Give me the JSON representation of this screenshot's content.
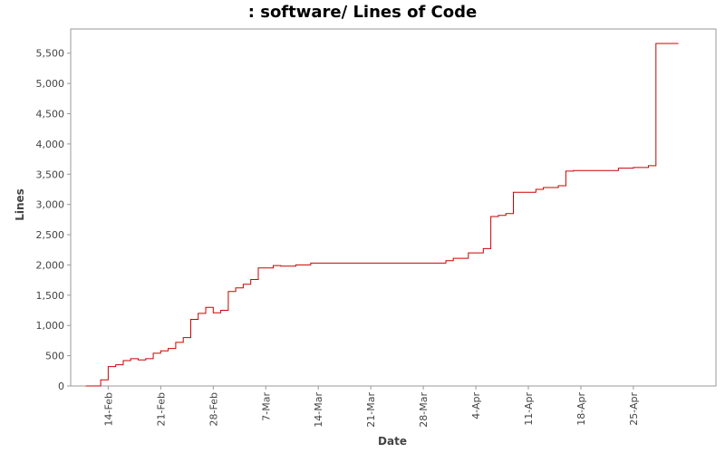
{
  "chart_data": {
    "type": "line",
    "title": ": software/ Lines of Code",
    "xlabel": "Date",
    "ylabel": "Lines",
    "x_tick_labels": [
      "14-Feb",
      "21-Feb",
      "28-Feb",
      "7-Mar",
      "14-Mar",
      "21-Mar",
      "28-Mar",
      "4-Apr",
      "11-Apr",
      "18-Apr",
      "25-Apr"
    ],
    "y_tick_labels": [
      "0",
      "500",
      "1,000",
      "1,500",
      "2,000",
      "2,500",
      "3,000",
      "3,500",
      "4,000",
      "4,500",
      "5,000",
      "5,500"
    ],
    "xlim": [
      "2011-02-09",
      "2011-05-06"
    ],
    "ylim": [
      0,
      5900
    ],
    "grid": false,
    "line_color": "#cc0000",
    "series": [
      {
        "step": true,
        "points": [
          [
            "2011-02-11",
            0
          ],
          [
            "2011-02-13",
            100
          ],
          [
            "2011-02-14",
            320
          ],
          [
            "2011-02-15",
            350
          ],
          [
            "2011-02-16",
            420
          ],
          [
            "2011-02-17",
            450
          ],
          [
            "2011-02-18",
            430
          ],
          [
            "2011-02-19",
            450
          ],
          [
            "2011-02-20",
            540
          ],
          [
            "2011-02-21",
            580
          ],
          [
            "2011-02-22",
            620
          ],
          [
            "2011-02-23",
            720
          ],
          [
            "2011-02-24",
            800
          ],
          [
            "2011-02-25",
            1100
          ],
          [
            "2011-02-26",
            1200
          ],
          [
            "2011-02-27",
            1300
          ],
          [
            "2011-02-28",
            1210
          ],
          [
            "2011-03-01",
            1250
          ],
          [
            "2011-03-02",
            1560
          ],
          [
            "2011-03-03",
            1620
          ],
          [
            "2011-03-04",
            1680
          ],
          [
            "2011-03-05",
            1760
          ],
          [
            "2011-03-06",
            1950
          ],
          [
            "2011-03-08",
            1990
          ],
          [
            "2011-03-09",
            1980
          ],
          [
            "2011-03-11",
            2000
          ],
          [
            "2011-03-13",
            2030
          ],
          [
            "2011-03-31",
            2070
          ],
          [
            "2011-04-01",
            2110
          ],
          [
            "2011-04-03",
            2200
          ],
          [
            "2011-04-05",
            2270
          ],
          [
            "2011-04-06",
            2800
          ],
          [
            "2011-04-07",
            2820
          ],
          [
            "2011-04-08",
            2850
          ],
          [
            "2011-04-09",
            3200
          ],
          [
            "2011-04-12",
            3250
          ],
          [
            "2011-04-13",
            3280
          ],
          [
            "2011-04-15",
            3310
          ],
          [
            "2011-04-16",
            3550
          ],
          [
            "2011-04-17",
            3560
          ],
          [
            "2011-04-23",
            3600
          ],
          [
            "2011-04-25",
            3610
          ],
          [
            "2011-04-27",
            3640
          ],
          [
            "2011-04-28",
            5660
          ],
          [
            "2011-05-01",
            5660
          ]
        ]
      }
    ]
  }
}
